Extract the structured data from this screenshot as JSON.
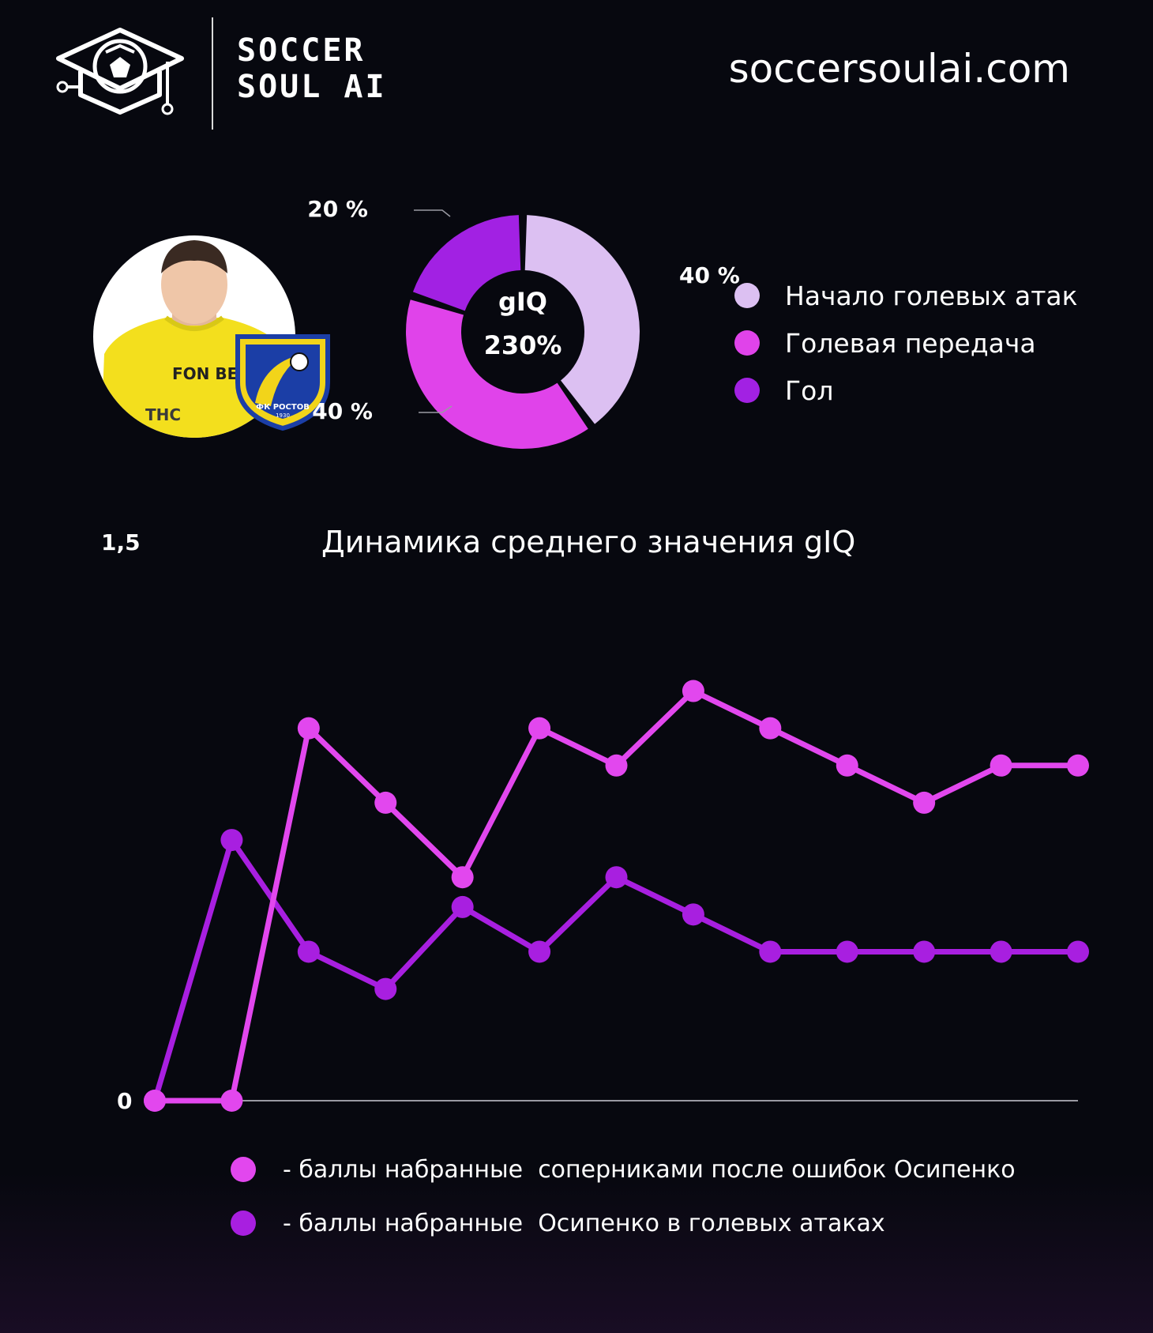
{
  "header": {
    "brand_line1": "SOCCER",
    "brand_line2": "SOUL AI",
    "site_url": "soccersoulai.com"
  },
  "player": {
    "shirt_text": "FON BET",
    "sponsor_text": "ТНС",
    "club_badge_text": "ФК РОСТОВ",
    "club_year": "1930"
  },
  "colors": {
    "light_lavender": "#dcc0f2",
    "magenta": "#e043ea",
    "purple": "#a221e3",
    "line_pink": "#e247ee",
    "line_purple": "#a81fe0",
    "jersey_yellow": "#f3df1d",
    "badge_blue": "#1b3ea6"
  },
  "chart_data": [
    {
      "type": "pie",
      "donut": true,
      "center_label": "gIQ",
      "center_value": "230%",
      "labels": [
        "Начало голевых атак",
        "Голевая передача",
        "Гол"
      ],
      "values": [
        40,
        40,
        20
      ],
      "value_labels": [
        "40 %",
        "40 %",
        "20 %"
      ],
      "colors": [
        "#dcc0f2",
        "#e043ea",
        "#a221e3"
      ],
      "legend_position": "right"
    },
    {
      "type": "line",
      "title": "Динамика среднего значения gIQ",
      "ylim": [
        0,
        1.5
      ],
      "y_tick_labels": [
        "0",
        "1,5"
      ],
      "grid": false,
      "x": [
        1,
        2,
        3,
        4,
        5,
        6,
        7,
        8,
        9,
        10,
        11,
        12,
        13
      ],
      "series": [
        {
          "name": "- баллы набранные  соперниками после ошибок Осипенко",
          "color": "#e247ee",
          "values": [
            0,
            0,
            1.0,
            0.8,
            0.6,
            1.0,
            0.9,
            1.1,
            1.0,
            0.9,
            0.8,
            0.9,
            0.9
          ]
        },
        {
          "name": "- баллы набранные  Осипенко в голевых атаках",
          "color": "#a81fe0",
          "values": [
            0,
            0.7,
            0.4,
            0.3,
            0.52,
            0.4,
            0.6,
            0.5,
            0.4,
            0.4,
            0.4,
            0.4,
            0.4
          ]
        }
      ],
      "legend_position": "bottom"
    }
  ]
}
